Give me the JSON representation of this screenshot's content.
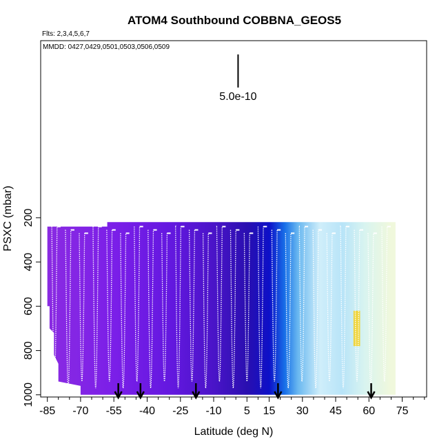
{
  "chart_data": {
    "type": "heatmap",
    "title": "ATOM4 Southbound COBBNA_GEOS5",
    "flights_label": "Flts: 2,3,4,5,6,7",
    "dates_label": "MMDD: 0427,0429,0501,0503,0506,0509",
    "xlabel": "Latitude (deg N)",
    "ylabel": "PSXC (mbar)",
    "xlim": [
      -88,
      86
    ],
    "ylim": [
      1010,
      -600
    ],
    "x_ticks": [
      -85,
      -70,
      -55,
      -40,
      -25,
      -10,
      5,
      15,
      30,
      45,
      60,
      75
    ],
    "x_tick_labels": [
      "-85",
      "-70",
      "-55",
      "-40",
      "-25",
      "-10",
      "5",
      "15",
      "30",
      "45",
      "60",
      "75"
    ],
    "y_ticks": [
      200,
      400,
      600,
      800,
      1000
    ],
    "y_tick_labels": [
      "200",
      "400",
      "600",
      "800",
      "1000"
    ],
    "scale_bar_label": "5.0e-10",
    "arrow_latitudes": [
      -53,
      -43,
      -18,
      19,
      61
    ],
    "data_region": {
      "lat_range": [
        -85,
        72
      ],
      "p_range": [
        190,
        1000
      ]
    },
    "color_gradient": [
      {
        "lat": -85,
        "color": "#8a2be2"
      },
      {
        "lat": -55,
        "color": "#7b1fe8"
      },
      {
        "lat": -30,
        "color": "#6418e0"
      },
      {
        "lat": -10,
        "color": "#4a14c8"
      },
      {
        "lat": 5,
        "color": "#2a0fb0"
      },
      {
        "lat": 15,
        "color": "#0d10c8"
      },
      {
        "lat": 22,
        "color": "#1870e8"
      },
      {
        "lat": 28,
        "color": "#6ab8f0"
      },
      {
        "lat": 38,
        "color": "#cfeefa"
      },
      {
        "lat": 48,
        "color": "#b8e4f8"
      },
      {
        "lat": 58,
        "color": "#d8f4f0"
      },
      {
        "lat": 70,
        "color": "#f0f8dc"
      }
    ]
  }
}
